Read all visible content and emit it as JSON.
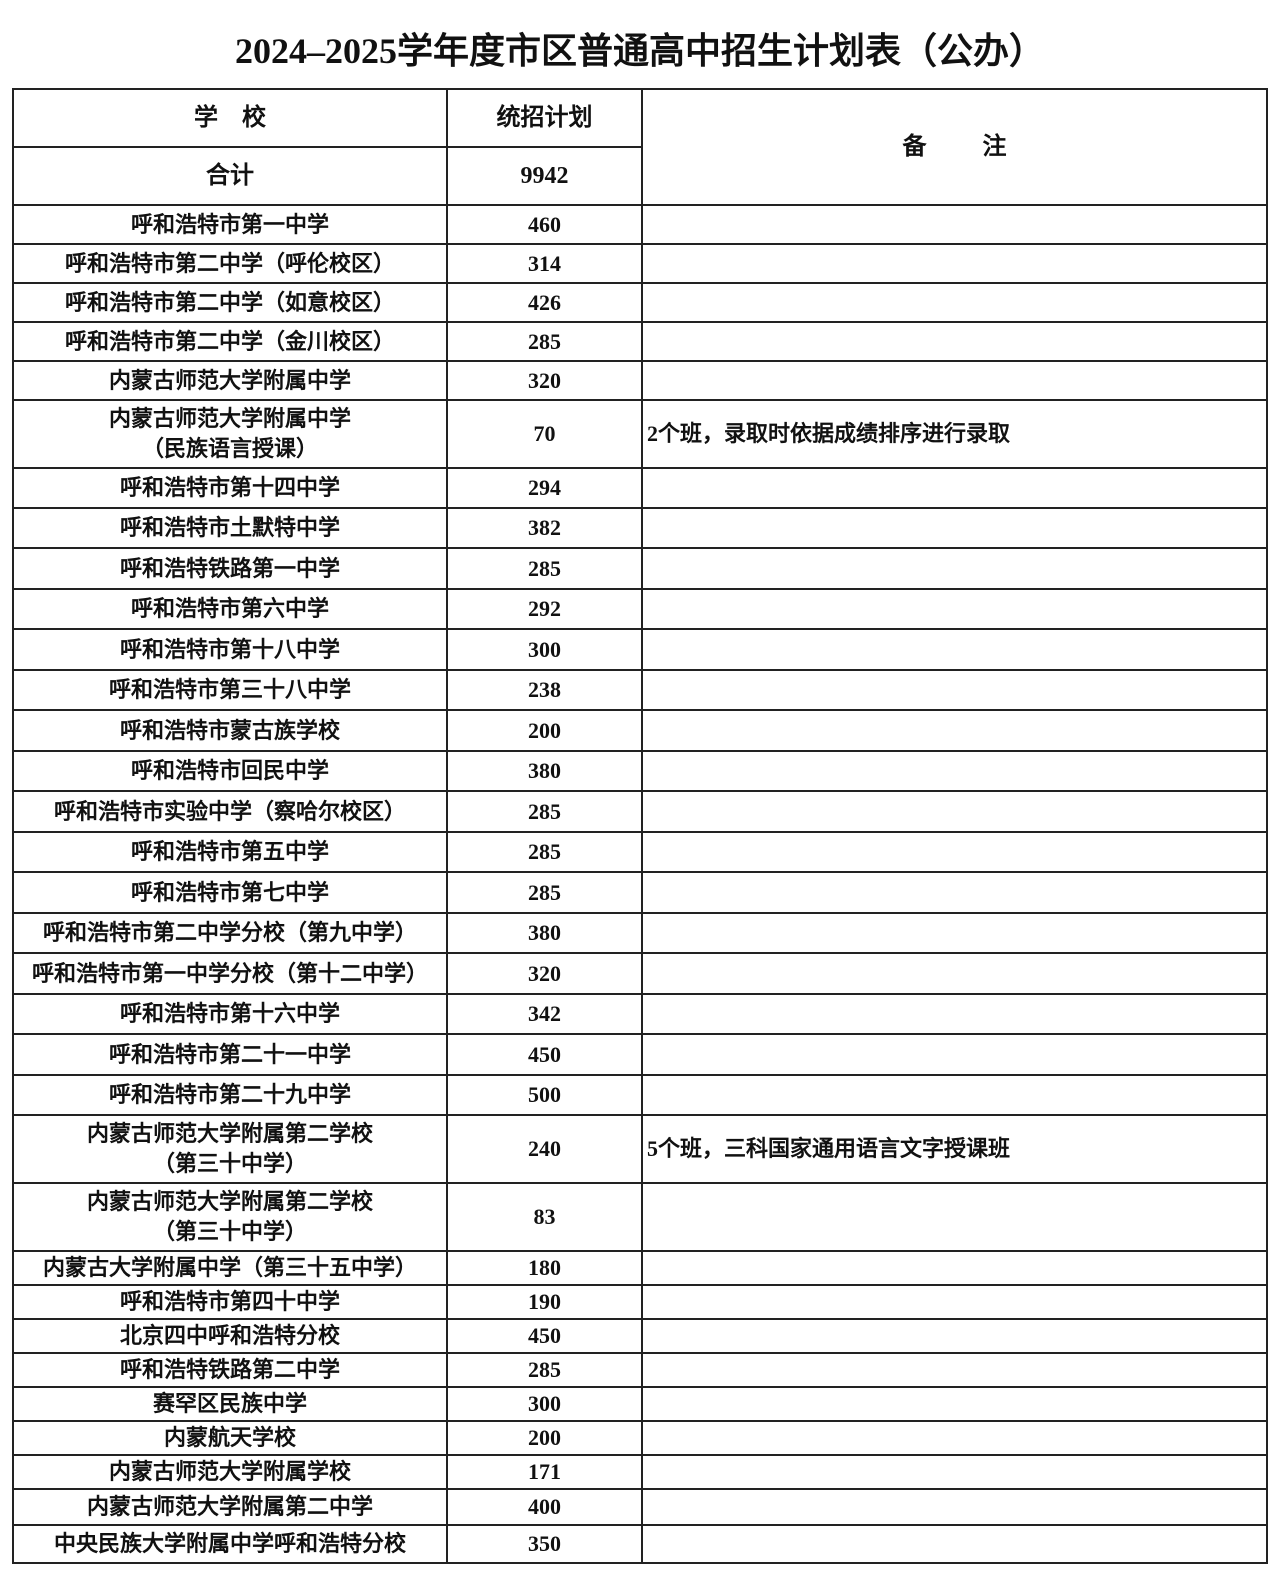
{
  "title": "2024–2025学年度市区普通高中招生计划表（公办）",
  "header": {
    "school": "学　校",
    "plan": "统招计划",
    "remark": "备注"
  },
  "total": {
    "label": "合计",
    "value": "9942"
  },
  "rows": [
    {
      "school": [
        "呼和浩特市第一中学"
      ],
      "plan": "460",
      "remark": ""
    },
    {
      "school": [
        "呼和浩特市第二中学（呼伦校区）"
      ],
      "plan": "314",
      "remark": ""
    },
    {
      "school": [
        "呼和浩特市第二中学（如意校区）"
      ],
      "plan": "426",
      "remark": ""
    },
    {
      "school": [
        "呼和浩特市第二中学（金川校区）"
      ],
      "plan": "285",
      "remark": ""
    },
    {
      "school": [
        "内蒙古师范大学附属中学"
      ],
      "plan": "320",
      "remark": ""
    },
    {
      "school": [
        "内蒙古师范大学附属中学",
        "（民族语言授课）"
      ],
      "plan": "70",
      "remark": "2个班，录取时依据成绩排序进行录取"
    },
    {
      "school": [
        "呼和浩特市第十四中学"
      ],
      "plan": "294",
      "remark": ""
    },
    {
      "school": [
        "呼和浩特市土默特中学"
      ],
      "plan": "382",
      "remark": ""
    },
    {
      "school": [
        "呼和浩特铁路第一中学"
      ],
      "plan": "285",
      "remark": ""
    },
    {
      "school": [
        "呼和浩特市第六中学"
      ],
      "plan": "292",
      "remark": ""
    },
    {
      "school": [
        "呼和浩特市第十八中学"
      ],
      "plan": "300",
      "remark": ""
    },
    {
      "school": [
        "呼和浩特市第三十八中学"
      ],
      "plan": "238",
      "remark": ""
    },
    {
      "school": [
        "呼和浩特市蒙古族学校"
      ],
      "plan": "200",
      "remark": ""
    },
    {
      "school": [
        "呼和浩特市回民中学"
      ],
      "plan": "380",
      "remark": ""
    },
    {
      "school": [
        "呼和浩特市实验中学（察哈尔校区）"
      ],
      "plan": "285",
      "remark": ""
    },
    {
      "school": [
        "呼和浩特市第五中学"
      ],
      "plan": "285",
      "remark": ""
    },
    {
      "school": [
        "呼和浩特市第七中学"
      ],
      "plan": "285",
      "remark": ""
    },
    {
      "school": [
        "呼和浩特市第二中学分校（第九中学）"
      ],
      "plan": "380",
      "remark": ""
    },
    {
      "school": [
        "呼和浩特市第一中学分校（第十二中学）"
      ],
      "plan": "320",
      "remark": ""
    },
    {
      "school": [
        "呼和浩特市第十六中学"
      ],
      "plan": "342",
      "remark": ""
    },
    {
      "school": [
        "呼和浩特市第二十一中学"
      ],
      "plan": "450",
      "remark": ""
    },
    {
      "school": [
        "呼和浩特市第二十九中学"
      ],
      "plan": "500",
      "remark": ""
    },
    {
      "school": [
        "内蒙古师范大学附属第二学校",
        "（第三十中学）"
      ],
      "plan": "240",
      "remark": "5个班，三科国家通用语言文字授课班"
    },
    {
      "school": [
        "内蒙古师范大学附属第二学校",
        "（第三十中学）"
      ],
      "plan": "83",
      "remark": ""
    },
    {
      "school": [
        "内蒙古大学附属中学（第三十五中学）"
      ],
      "plan": "180",
      "remark": ""
    },
    {
      "school": [
        "呼和浩特市第四十中学"
      ],
      "plan": "190",
      "remark": ""
    },
    {
      "school": [
        "北京四中呼和浩特分校"
      ],
      "plan": "450",
      "remark": ""
    },
    {
      "school": [
        "呼和浩特铁路第二中学"
      ],
      "plan": "285",
      "remark": ""
    },
    {
      "school": [
        "赛罕区民族中学"
      ],
      "plan": "300",
      "remark": ""
    },
    {
      "school": [
        "内蒙航天学校"
      ],
      "plan": "200",
      "remark": ""
    },
    {
      "school": [
        "内蒙古师范大学附属学校"
      ],
      "plan": "171",
      "remark": ""
    },
    {
      "school": [
        "内蒙古师范大学附属第二中学"
      ],
      "plan": "400",
      "remark": ""
    },
    {
      "school": [
        "中央民族大学附属中学呼和浩特分校"
      ],
      "plan": "350",
      "remark": ""
    }
  ]
}
